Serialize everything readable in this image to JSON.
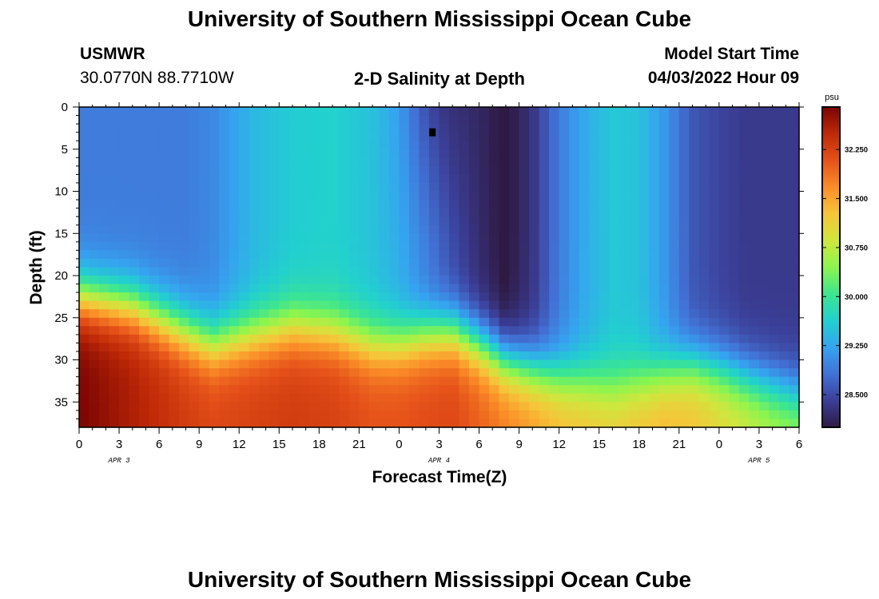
{
  "header": {
    "title": "University of Southern Mississippi Ocean Cube",
    "station": "USMWR",
    "coords": "30.0770N  88.7710W",
    "subtitle": "2-D Salinity at Depth",
    "model_label": "Model Start Time",
    "model_time": "04/03/2022 Hour 09"
  },
  "footer": {
    "title": "University of Southern Mississippi Ocean Cube"
  },
  "colors": {
    "scale": [
      "#2f1a44",
      "#3b3f98",
      "#4272d6",
      "#35a4f0",
      "#22d0cf",
      "#3de68f",
      "#8bf54e",
      "#cfe73e",
      "#f6c539",
      "#fb8d28",
      "#e6521a",
      "#bf2907",
      "#7a0403"
    ]
  },
  "chart_data": {
    "type": "heatmap",
    "xlabel": "Forecast Time(Z)",
    "ylabel": "Depth (ft)",
    "x_ticks": [
      "0",
      "3",
      "6",
      "9",
      "12",
      "15",
      "18",
      "21",
      "0",
      "3",
      "6",
      "9",
      "12",
      "15",
      "18",
      "21",
      "0",
      "3",
      "6"
    ],
    "date_labels": [
      {
        "label": "APR 3",
        "hour": 3
      },
      {
        "label": "APR 4",
        "hour": 27
      },
      {
        "label": "APR 5",
        "hour": 51
      }
    ],
    "x_range_hours": [
      0,
      54
    ],
    "y_ticks": [
      0,
      5,
      10,
      15,
      20,
      25,
      30,
      35
    ],
    "y_range": [
      0,
      38
    ],
    "y_inverted": true,
    "colorbar": {
      "unit": "psu",
      "range": [
        28.0,
        32.9
      ],
      "ticks": [
        "32.250",
        "31.500",
        "30.750",
        "30.000",
        "29.250",
        "28.500"
      ],
      "tick_values": [
        32.25,
        31.5,
        30.75,
        30.0,
        29.25,
        28.5
      ]
    },
    "profile": {
      "hours": [
        0,
        4,
        8,
        10,
        13,
        16,
        19,
        22,
        24,
        26,
        28,
        30,
        32,
        34,
        36,
        38,
        40,
        42,
        44,
        46,
        48,
        50,
        52,
        54
      ],
      "surface_psu": [
        28.9,
        28.9,
        28.9,
        29.0,
        29.4,
        29.6,
        29.65,
        29.5,
        29.3,
        28.9,
        28.5,
        28.2,
        27.95,
        28.3,
        28.9,
        29.3,
        29.55,
        29.5,
        29.1,
        28.6,
        28.45,
        28.35,
        28.35,
        28.35
      ],
      "halocline_ft": [
        22.5,
        23.5,
        26.5,
        28,
        27,
        26,
        26.5,
        28,
        28,
        27,
        26.5,
        28,
        30,
        31,
        32,
        32.5,
        33,
        32.5,
        31.5,
        30.5,
        31,
        32,
        33,
        34
      ],
      "deep_psu": [
        32.9,
        32.6,
        32.3,
        32.2,
        32.25,
        32.3,
        32.25,
        32.1,
        32.1,
        32.15,
        32.2,
        32.0,
        31.8,
        31.6,
        31.4,
        31.3,
        31.2,
        31.3,
        31.4,
        31.3,
        31.1,
        30.9,
        30.7,
        30.6
      ]
    },
    "markers": [
      {
        "hour": 26.5,
        "depth_ft": 3,
        "label": ""
      }
    ]
  }
}
